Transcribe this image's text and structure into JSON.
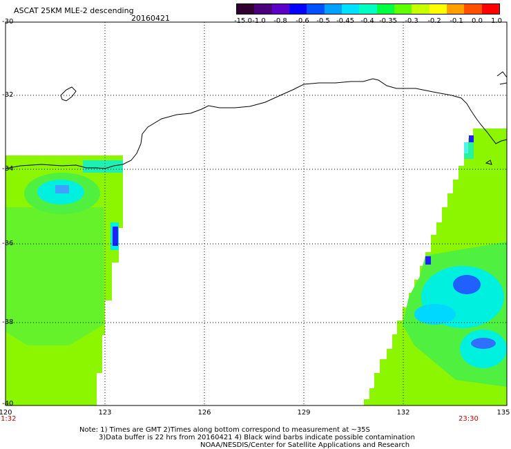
{
  "header": {
    "title": "ASCAT 25KM MLE-2 descending",
    "date": "20160421"
  },
  "colorbar": {
    "labels": [
      "-15.0",
      "-1.0",
      "-0.8",
      "-0.6",
      "-0.5",
      "-0.45",
      "-0.4",
      "-0.35",
      "-0.3",
      "-0.2",
      "-0.1",
      "0.0",
      "1.0"
    ],
    "colors": [
      "#300030",
      "#4a007a",
      "#5a00c8",
      "#0000ff",
      "#0050ff",
      "#00a0ff",
      "#00e0ff",
      "#00ffc0",
      "#00ff40",
      "#60ff00",
      "#c8ff00",
      "#ffff00",
      "#ffa000",
      "#ff5000",
      "#ff0000"
    ]
  },
  "axes": {
    "lat_labels": [
      "-30",
      "-32",
      "-34",
      "-36",
      "-38",
      "-40"
    ],
    "lon_labels": [
      "120",
      "123",
      "126",
      "129",
      "132",
      "135"
    ]
  },
  "times": {
    "left": "1:32",
    "right": "23:30"
  },
  "notes": {
    "line1": "Note: 1) Times are GMT 2)Times along bottom correspond to measurement at ~35S",
    "line2": "3)Data buffer is 22 hrs from 20160421 4) Black wind barbs indicate possible contamination",
    "line3": "NOAA/NESDIS/Center for Satellite Applications and Research"
  },
  "palette": {
    "base": "#8cf500",
    "mid": "#50f040",
    "cyan": "#00f0e0",
    "blue": "#2020ff",
    "coast": "#000000",
    "grid": "#000000"
  }
}
